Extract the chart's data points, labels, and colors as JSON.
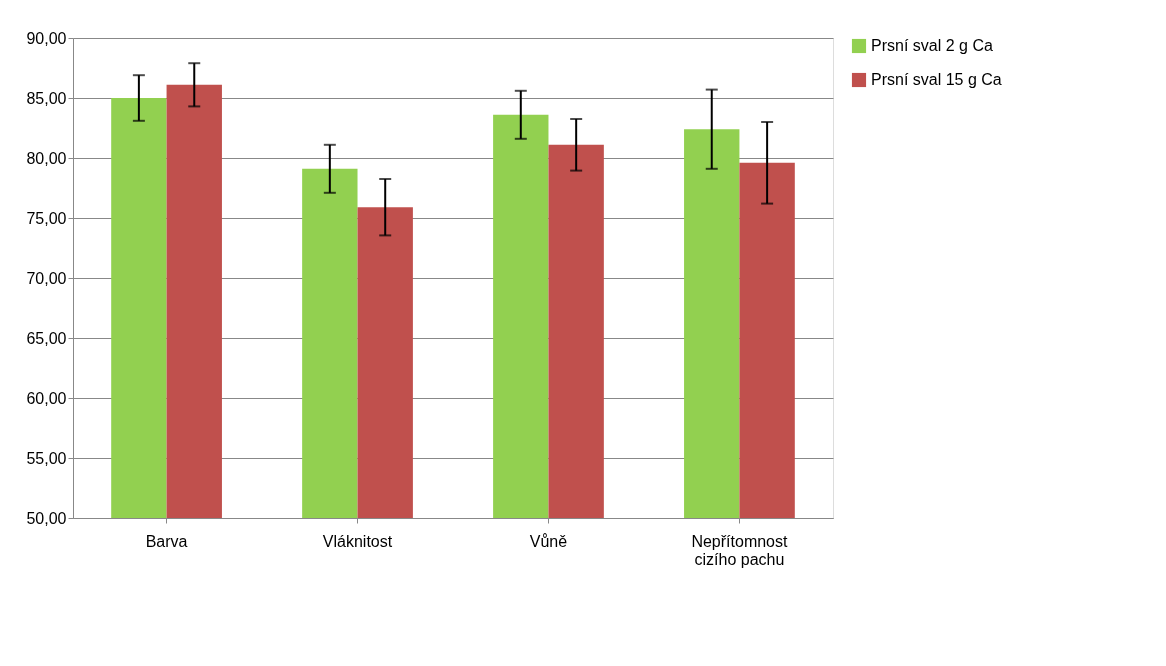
{
  "chart_data": {
    "type": "bar",
    "categories": [
      "Barva",
      "Vláknitost",
      "Vůně",
      "Nepřítomnost cizího pachu"
    ],
    "series": [
      {
        "name": "Prsní sval 2 g Ca",
        "color": "#92d050",
        "values": [
          85.0,
          79.1,
          83.6,
          82.4
        ],
        "errors": [
          1.9,
          2.0,
          2.0,
          3.3
        ]
      },
      {
        "name": "Prsní sval 15 g Ca",
        "color": "#c0504d",
        "values": [
          86.1,
          75.9,
          81.1,
          79.6
        ],
        "errors": [
          1.8,
          2.35,
          2.15,
          3.4
        ]
      }
    ],
    "ylim": [
      50,
      90
    ],
    "yticks": [
      {
        "value": 50,
        "label": "50,00"
      },
      {
        "value": 55,
        "label": "55,00"
      },
      {
        "value": 60,
        "label": "60,00"
      },
      {
        "value": 65,
        "label": "65,00"
      },
      {
        "value": 70,
        "label": "70,00"
      },
      {
        "value": 75,
        "label": "75,00"
      },
      {
        "value": 80,
        "label": "80,00"
      },
      {
        "value": 85,
        "label": "85,00"
      },
      {
        "value": 90,
        "label": "90,00"
      }
    ],
    "grid": "y",
    "legend": "right"
  }
}
